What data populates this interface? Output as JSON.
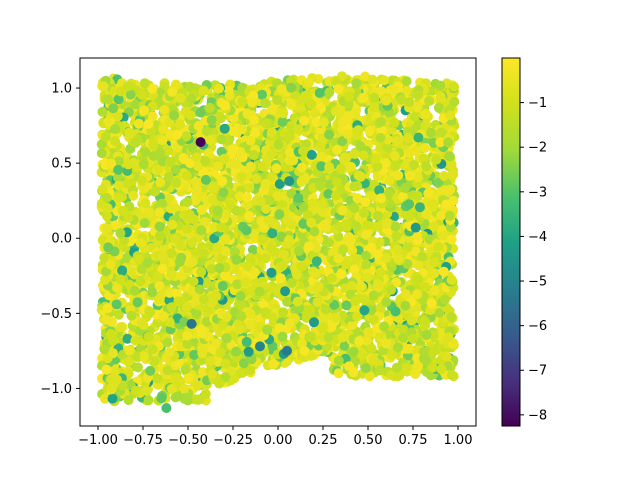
{
  "chart_data": {
    "type": "scatter",
    "title": "",
    "xlabel": "",
    "ylabel": "",
    "xlim": [
      -1.1,
      1.1
    ],
    "ylim": [
      -1.25,
      1.2
    ],
    "xticks": [
      -1.0,
      -0.75,
      -0.5,
      -0.25,
      0.0,
      0.25,
      0.5,
      0.75,
      1.0
    ],
    "xtick_labels": [
      "−1.00",
      "−0.75",
      "−0.50",
      "−0.25",
      "0.00",
      "0.25",
      "0.50",
      "0.75",
      "1.00"
    ],
    "yticks": [
      -1.0,
      -0.5,
      0.0,
      0.5,
      1.0
    ],
    "ytick_labels": [
      "−1.0",
      "−0.5",
      "0.0",
      "0.5",
      "1.0"
    ],
    "grid": false,
    "colormap": "viridis",
    "colorbar": {
      "range": [
        -8.25,
        0
      ],
      "ticks": [
        -1,
        -2,
        -3,
        -4,
        -5,
        -6,
        -7,
        -8
      ],
      "tick_labels": [
        "−1",
        "−2",
        "−3",
        "−4",
        "−5",
        "−6",
        "−7",
        "−8"
      ]
    },
    "point_count_approx": 5000,
    "notable_points": [
      {
        "x": -0.43,
        "y": 0.64,
        "c": -8.2
      },
      {
        "x": -0.48,
        "y": -0.57,
        "c": -5.5
      },
      {
        "x": -0.1,
        "y": -0.72,
        "c": -5.0
      },
      {
        "x": 0.05,
        "y": -0.75,
        "c": -5.3
      },
      {
        "x": -0.62,
        "y": -1.13,
        "c": -3.2
      },
      {
        "x": 0.48,
        "y": -0.48,
        "c": -4.0
      },
      {
        "x": 0.78,
        "y": 0.67,
        "c": -3.5
      }
    ],
    "colors": {
      "axes": "#000000",
      "background": "#ffffff"
    }
  }
}
